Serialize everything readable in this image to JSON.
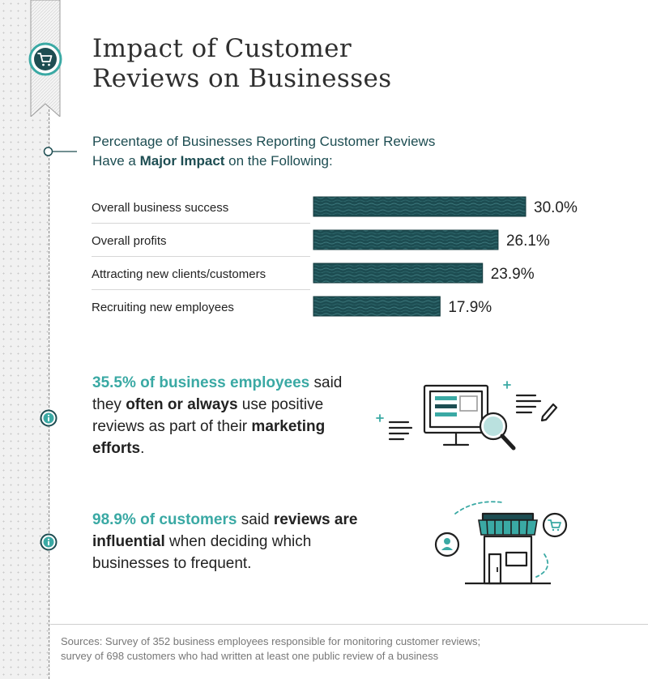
{
  "title": {
    "line1": "Impact of Customer",
    "line2": "Reviews on Businesses"
  },
  "subtitle": {
    "line1": "Percentage of Businesses Reporting Customer Reviews",
    "line2_pre": "Have a ",
    "line2_bold": "Major Impact",
    "line2_post": " on the Following:"
  },
  "colors": {
    "bar": "#1d4d52",
    "accent": "#3aa9a4",
    "text": "#222222"
  },
  "chart_data": {
    "type": "bar",
    "orientation": "horizontal",
    "categories": [
      "Overall business success",
      "Overall profits",
      "Attracting new clients/customers",
      "Recruiting new employees"
    ],
    "values": [
      30.0,
      26.1,
      23.9,
      17.9
    ],
    "value_labels": [
      "30.0%",
      "26.1%",
      "23.9%",
      "17.9%"
    ],
    "title": "",
    "xlabel": "",
    "ylabel": "",
    "xlim": [
      0,
      30
    ],
    "grid": false,
    "legend": "none"
  },
  "stats": [
    {
      "highlight": "35.5% of business employees",
      "t1": " said they ",
      "b1": "often or always",
      "t2": " use positive reviews as part of their ",
      "b2": "marketing efforts",
      "t3": ".",
      "icon": "computer-magnifier-icon"
    },
    {
      "highlight": "98.9% of customers",
      "t1": " said ",
      "b1": "reviews are influential",
      "t2": " when deciding which businesses to frequent.",
      "icon": "storefront-icon"
    }
  ],
  "sources": {
    "line1": "Sources: Survey of 352 business employees responsible for monitoring customer reviews;",
    "line2": "survey of 698 customers who had written at least one public review of a business"
  }
}
